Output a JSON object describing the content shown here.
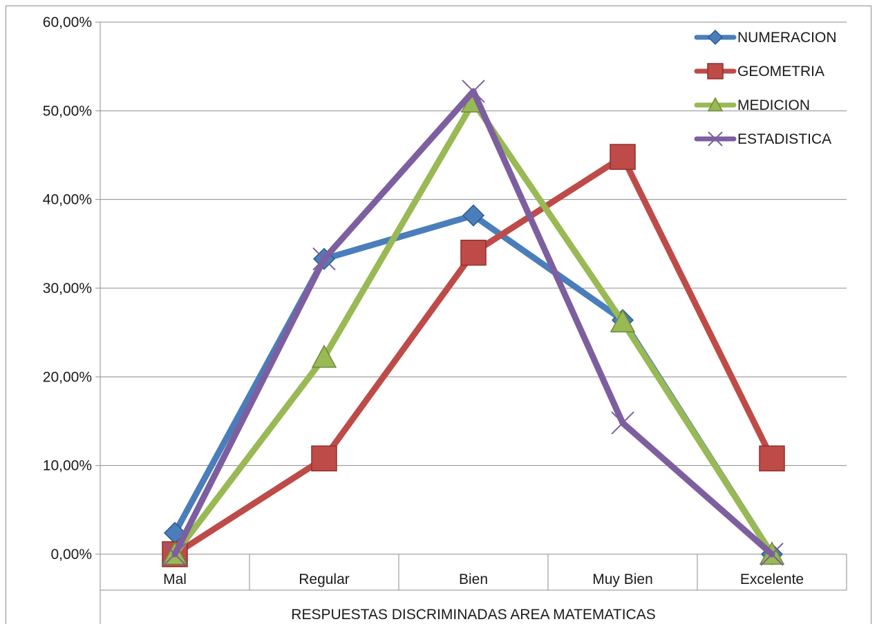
{
  "chart_data": {
    "type": "line",
    "title": "",
    "xlabel": "RESPUESTAS DISCRIMINADAS AREA MATEMATICAS",
    "ylabel": "",
    "categories": [
      "Mal",
      "Regular",
      "Bien",
      "Muy Bien",
      "Excelente"
    ],
    "y_ticks": [
      "0,00%",
      "10,00%",
      "20,00%",
      "30,00%",
      "40,00%",
      "50,00%",
      "60,00%"
    ],
    "ylim": [
      0,
      60
    ],
    "grid": true,
    "legend_position": "top-right",
    "series": [
      {
        "name": "NUMERACION",
        "values": [
          2.4,
          33.3,
          38.2,
          26.4,
          0
        ],
        "color": "#4a7ebb",
        "marker": "diamond"
      },
      {
        "name": "GEOMETRIA",
        "values": [
          0,
          10.8,
          34.0,
          44.8,
          10.8
        ],
        "color": "#be4b48",
        "marker": "square"
      },
      {
        "name": "MEDICION",
        "values": [
          0,
          22.2,
          51.0,
          26.2,
          0
        ],
        "color": "#98b954",
        "marker": "triangle"
      },
      {
        "name": "ESTADISTICA",
        "values": [
          0,
          33.3,
          52.2,
          14.8,
          0
        ],
        "color": "#7d5fa0",
        "marker": "x"
      }
    ]
  }
}
